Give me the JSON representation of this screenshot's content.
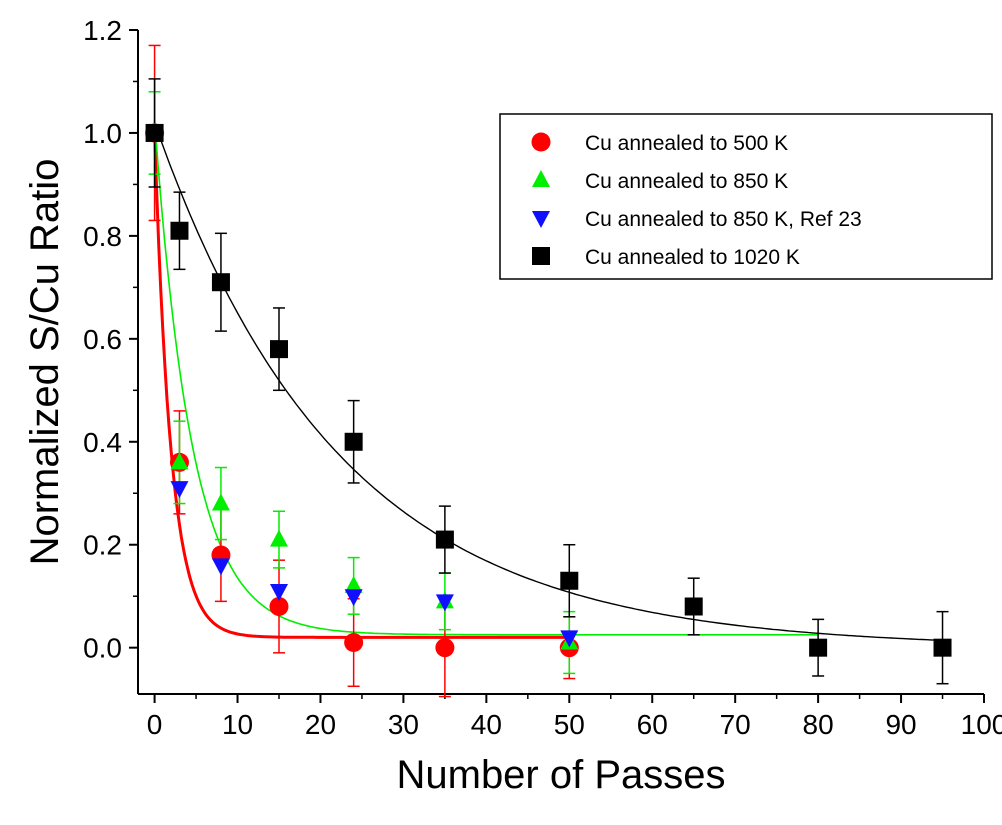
{
  "chart_data": {
    "type": "scatter",
    "title": "",
    "xlabel": "Number of Passes",
    "ylabel": "Normalized S/Cu Ratio",
    "xlim": [
      -2,
      100
    ],
    "ylim": [
      -0.09,
      1.2
    ],
    "x_ticks": [
      "0",
      "10",
      "20",
      "30",
      "40",
      "50",
      "60",
      "70",
      "80",
      "90",
      "100"
    ],
    "y_ticks": [
      "0.0",
      "0.2",
      "0.4",
      "0.6",
      "0.8",
      "1.0",
      "1.2"
    ],
    "grid": false,
    "legend_position": "top-right",
    "series": [
      {
        "name": "Cu annealed to 500 K",
        "marker": "circle",
        "color": "#ff0000",
        "points": [
          {
            "x": 0,
            "y": 1.0,
            "err": 0.17
          },
          {
            "x": 3,
            "y": 0.36,
            "err": 0.1
          },
          {
            "x": 8,
            "y": 0.18,
            "err": 0.09
          },
          {
            "x": 15,
            "y": 0.08,
            "err": 0.09
          },
          {
            "x": 24,
            "y": 0.01,
            "err": 0.085
          },
          {
            "x": 35,
            "y": 0.0,
            "err": 0.095
          },
          {
            "x": 50,
            "y": 0.0,
            "err": 0.06
          }
        ],
        "fit": {
          "amplitude": 0.98,
          "rate": 0.5,
          "offset": 0.02,
          "x_start": 0,
          "x_end": 50,
          "line_width": 3
        }
      },
      {
        "name": "Cu annealed to 850 K",
        "marker": "triangle-up",
        "color": "#00ee00",
        "points": [
          {
            "x": 0,
            "y": 1.0,
            "err": 0.08
          },
          {
            "x": 3,
            "y": 0.36,
            "err": 0.08
          },
          {
            "x": 8,
            "y": 0.28,
            "err": 0.07
          },
          {
            "x": 15,
            "y": 0.21,
            "err": 0.055
          },
          {
            "x": 24,
            "y": 0.12,
            "err": 0.055
          },
          {
            "x": 35,
            "y": 0.09,
            "err": 0.055
          },
          {
            "x": 50,
            "y": 0.01,
            "err": 0.06
          }
        ],
        "fit": {
          "amplitude": 1.0,
          "rate": 0.22,
          "offset": 0.025,
          "x_start": 0,
          "x_end": 80,
          "line_width": 1.6
        }
      },
      {
        "name": "Cu annealed to 850 K, Ref 23",
        "marker": "triangle-down",
        "color": "#1010ff",
        "points": [
          {
            "x": 3,
            "y": 0.31,
            "err": null
          },
          {
            "x": 8,
            "y": 0.16,
            "err": null
          },
          {
            "x": 15,
            "y": 0.11,
            "err": null
          },
          {
            "x": 24,
            "y": 0.1,
            "err": null
          },
          {
            "x": 35,
            "y": 0.09,
            "err": null
          },
          {
            "x": 50,
            "y": 0.02,
            "err": null
          }
        ]
      },
      {
        "name": "Cu annealed to 1020 K",
        "marker": "square",
        "color": "#000000",
        "points": [
          {
            "x": 0,
            "y": 1.0,
            "err": 0.105
          },
          {
            "x": 3,
            "y": 0.81,
            "err": 0.075
          },
          {
            "x": 8,
            "y": 0.71,
            "err": 0.095
          },
          {
            "x": 15,
            "y": 0.58,
            "err": 0.08
          },
          {
            "x": 24,
            "y": 0.4,
            "err": 0.08
          },
          {
            "x": 35,
            "y": 0.21,
            "err": 0.065
          },
          {
            "x": 50,
            "y": 0.13,
            "err": 0.07
          },
          {
            "x": 65,
            "y": 0.08,
            "err": 0.055
          },
          {
            "x": 80,
            "y": 0.0,
            "err": 0.055
          },
          {
            "x": 95,
            "y": 0.0,
            "err": 0.07
          }
        ],
        "fit": {
          "amplitude": 1.02,
          "rate": 0.045,
          "offset": 0.0,
          "x_start": 0,
          "x_end": 95,
          "line_width": 1.4
        }
      }
    ]
  }
}
